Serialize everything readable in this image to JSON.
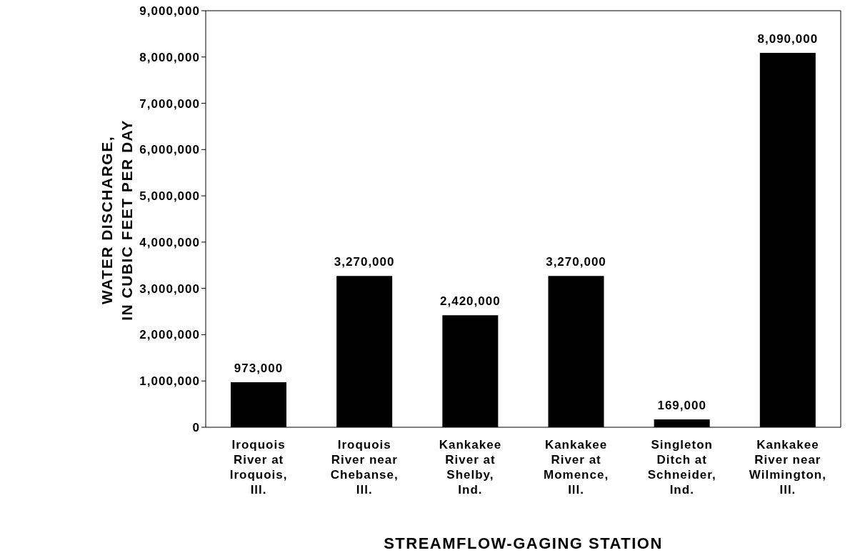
{
  "chart_data": {
    "type": "bar",
    "xlabel": "STREAMFLOW-GAGING STATION",
    "ylabel": "WATER DISCHARGE,\nIN CUBIC FEET PER DAY",
    "categories": [
      "Iroquois River at Iroquois, Ill.",
      "Iroquois River near Chebanse, Ill.",
      "Kankakee River at Shelby, Ind.",
      "Kankakee River at Momence, Ill.",
      "Singleton Ditch at Schneider, Ind.",
      "Kankakee River near Wilmington, Ill."
    ],
    "values": [
      973000,
      3270000,
      2420000,
      3270000,
      169000,
      8090000
    ],
    "value_labels": [
      "973,000",
      "3,270,000",
      "2,420,000",
      "3,270,000",
      "169,000",
      "8,090,000"
    ],
    "color": "#000000",
    "ylim": [
      0,
      9000000
    ],
    "yticks": [
      0,
      {
        "value": 1000000,
        "label": "1,000,000"
      },
      {
        "value": 2000000,
        "label": "2,000,000"
      },
      {
        "value": 3000000,
        "label": "3,000,000"
      },
      {
        "value": 4000000,
        "label": "4,000,000"
      },
      {
        "value": 5000000,
        "label": "5,000,000"
      },
      {
        "value": 6000000,
        "label": "6,000,000"
      },
      {
        "value": 7000000,
        "label": "7,000,000"
      },
      {
        "value": 8000000,
        "label": "8,000,000"
      },
      {
        "value": 9000000,
        "label": "9,000,000"
      }
    ],
    "grid": false,
    "legend": false
  }
}
